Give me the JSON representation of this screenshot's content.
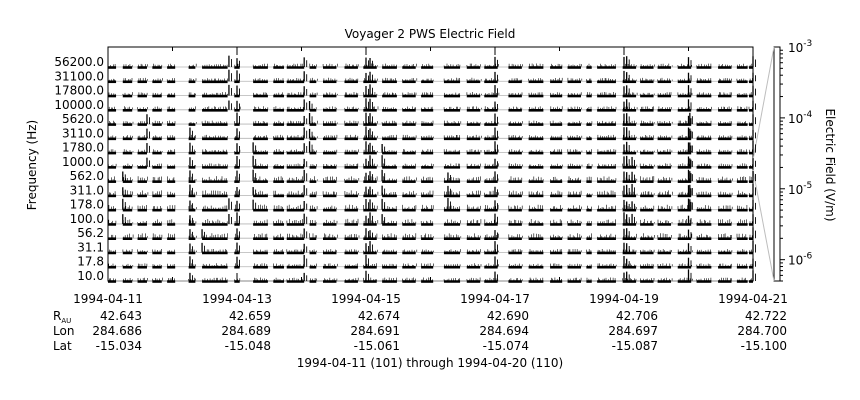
{
  "chart_data": {
    "type": "line",
    "title": "Voyager 2 PWS Electric Field",
    "ylabel": "Frequency (Hz)",
    "colorbar": {
      "label": "Electric Field (V/m)",
      "scale": "log",
      "ticks": [
        {
          "value": 0.001,
          "base": "10",
          "exp": "-3"
        },
        {
          "value": 0.0001,
          "base": "10",
          "exp": "-4"
        },
        {
          "value": 1e-05,
          "base": "10",
          "exp": "-5"
        },
        {
          "value": 1e-06,
          "base": "10",
          "exp": "-6"
        }
      ],
      "range": [
        5e-07,
        0.001
      ]
    },
    "channels": [
      "56200.0",
      "31100.0",
      "17800.0",
      "10000.0",
      "5620.0",
      "3110.0",
      "1780.0",
      "1000.0",
      "562.0",
      "311.0",
      "178.0",
      "100.0",
      "56.2",
      "31.1",
      "17.8",
      "10.0"
    ],
    "x_ticks": [
      "1994-04-11",
      "1994-04-13",
      "1994-04-15",
      "1994-04-17",
      "1994-04-19",
      "1994-04-21"
    ],
    "x_range": [
      "1994-04-11",
      "1994-04-21"
    ],
    "ephemeris": {
      "rows": [
        {
          "label": "R",
          "sub": "AU",
          "values": [
            "42.643",
            "42.659",
            "42.674",
            "42.690",
            "42.706",
            "42.722"
          ]
        },
        {
          "label": "Lon",
          "sub": "",
          "values": [
            "284.686",
            "284.689",
            "284.691",
            "284.694",
            "284.697",
            "284.700"
          ]
        },
        {
          "label": "Lat",
          "sub": "",
          "values": [
            "-15.034",
            "-15.048",
            "-15.061",
            "-15.074",
            "-15.087",
            "-15.100"
          ]
        }
      ]
    },
    "footer": "1994-04-11 (101) through 1994-04-20 (110)",
    "data_segments": [
      [
        "1994-04-11T00:00",
        "1994-04-11T03:00"
      ],
      [
        "1994-04-11T05:30",
        "1994-04-11T09:00"
      ],
      [
        "1994-04-11T11:00",
        "1994-04-11T14:30"
      ],
      [
        "1994-04-11T16:30",
        "1994-04-11T20:00"
      ],
      [
        "1994-04-11T22:00",
        "1994-04-12T01:00"
      ],
      [
        "1994-04-12T06:00",
        "1994-04-12T08:30"
      ],
      [
        "1994-04-12T11:00",
        "1994-04-12T20:30"
      ],
      [
        "1994-04-12T23:00",
        "1994-04-13T01:00"
      ],
      [
        "1994-04-13T06:00",
        "1994-04-13T11:30"
      ],
      [
        "1994-04-13T13:30",
        "1994-04-13T17:30"
      ],
      [
        "1994-04-13T18:30",
        "1994-04-14T01:00"
      ],
      [
        "1994-04-14T03:00",
        "1994-04-14T05:30"
      ],
      [
        "1994-04-14T08:00",
        "1994-04-14T13:00"
      ],
      [
        "1994-04-14T16:00",
        "1994-04-14T21:00"
      ],
      [
        "1994-04-14T23:00",
        "1994-04-15T04:00"
      ],
      [
        "1994-04-15T06:00",
        "1994-04-15T11:30"
      ],
      [
        "1994-04-15T13:30",
        "1994-04-15T18:30"
      ],
      [
        "1994-04-15T20:30",
        "1994-04-16T01:00"
      ],
      [
        "1994-04-16T05:00",
        "1994-04-16T11:00"
      ],
      [
        "1994-04-16T13:30",
        "1994-04-16T18:30"
      ],
      [
        "1994-04-16T20:00",
        "1994-04-17T01:00"
      ],
      [
        "1994-04-17T05:00",
        "1994-04-17T10:00"
      ],
      [
        "1994-04-17T12:30",
        "1994-04-17T18:00"
      ],
      [
        "1994-04-17T20:30",
        "1994-04-18T01:00"
      ],
      [
        "1994-04-18T03:00",
        "1994-04-18T08:00"
      ],
      [
        "1994-04-18T10:00",
        "1994-04-18T12:00"
      ],
      [
        "1994-04-18T14:00",
        "1994-04-18T21:00"
      ],
      [
        "1994-04-18T23:30",
        "1994-04-19T04:30"
      ],
      [
        "1994-04-19T06:00",
        "1994-04-19T11:00"
      ],
      [
        "1994-04-19T12:30",
        "1994-04-19T17:30"
      ],
      [
        "1994-04-19T20:00",
        "1994-04-20T01:00"
      ],
      [
        "1994-04-20T03:00",
        "1994-04-20T08:30"
      ],
      [
        "1994-04-20T11:00",
        "1994-04-20T16:00"
      ],
      [
        "1994-04-20T18:00",
        "1994-04-20T22:00"
      ],
      [
        "1994-04-20T22:30",
        "1994-04-21T00:00"
      ]
    ],
    "bursts": [
      {
        "t": "1994-04-11T05:30",
        "ch": [
          8,
          9,
          10,
          11
        ]
      },
      {
        "t": "1994-04-11T14:30",
        "ch": [
          4,
          5,
          6,
          7
        ]
      },
      {
        "t": "1994-04-12T06:30",
        "ch": [
          5,
          6,
          7,
          8,
          9,
          10,
          11,
          12,
          13,
          14,
          15
        ]
      },
      {
        "t": "1994-04-12T11:00",
        "ch": [
          12,
          13
        ]
      },
      {
        "t": "1994-04-12T21:00",
        "ch": [
          0,
          1,
          2,
          3,
          10,
          11
        ]
      },
      {
        "t": "1994-04-13T00:00",
        "ch": [
          0,
          1,
          2,
          3,
          4,
          5,
          6,
          7,
          8,
          9,
          10,
          11,
          12,
          13,
          14
        ]
      },
      {
        "t": "1994-04-13T06:00",
        "ch": [
          6,
          7,
          8,
          9,
          10
        ]
      },
      {
        "t": "1994-04-14T01:00",
        "ch": [
          0,
          1,
          2,
          3,
          4,
          5,
          6,
          7,
          8,
          9,
          10,
          11,
          12,
          13,
          14,
          15
        ]
      },
      {
        "t": "1994-04-14T03:00",
        "ch": [
          3,
          4,
          5,
          6
        ]
      },
      {
        "t": "1994-04-15T00:00",
        "ch": [
          0,
          1,
          2,
          3,
          4,
          5,
          6,
          7,
          8,
          9,
          10,
          11,
          12,
          13,
          14,
          15
        ]
      },
      {
        "t": "1994-04-15T01:30",
        "ch": [
          0,
          1,
          2,
          3,
          4,
          5,
          6,
          7,
          8,
          9,
          10,
          11,
          12,
          13
        ]
      },
      {
        "t": "1994-04-15T06:00",
        "ch": [
          6,
          7,
          8,
          9,
          10,
          11
        ]
      },
      {
        "t": "1994-04-16T06:30",
        "ch": [
          8,
          9,
          10
        ]
      },
      {
        "t": "1994-04-17T00:00",
        "ch": [
          0,
          1,
          2,
          3,
          4,
          5,
          6,
          7,
          8,
          9,
          10,
          11,
          12,
          13,
          14,
          15
        ]
      },
      {
        "t": "1994-04-19T00:00",
        "ch": [
          0,
          1,
          2,
          3,
          4,
          5,
          6,
          7,
          8,
          9,
          10,
          11,
          12,
          13,
          14,
          15
        ]
      },
      {
        "t": "1994-04-19T01:00",
        "ch": [
          0,
          1,
          2,
          3,
          4,
          5,
          6,
          7,
          8,
          9,
          10,
          11,
          12,
          13,
          14,
          15
        ]
      },
      {
        "t": "1994-04-19T03:00",
        "ch": [
          7,
          8,
          9,
          10,
          11
        ]
      },
      {
        "t": "1994-04-20T00:00",
        "ch": [
          0,
          1,
          2,
          3,
          4,
          5,
          6,
          7,
          8,
          9,
          10,
          11,
          12,
          13,
          14,
          15
        ]
      },
      {
        "t": "1994-04-20T00:30",
        "ch": [
          4,
          5,
          6,
          7,
          8,
          9,
          10
        ]
      },
      {
        "t": "1994-04-21T00:00",
        "ch": [
          0,
          1,
          2,
          3,
          4,
          5,
          6,
          7,
          8,
          9,
          10,
          11,
          12,
          13,
          14,
          15
        ]
      }
    ]
  }
}
